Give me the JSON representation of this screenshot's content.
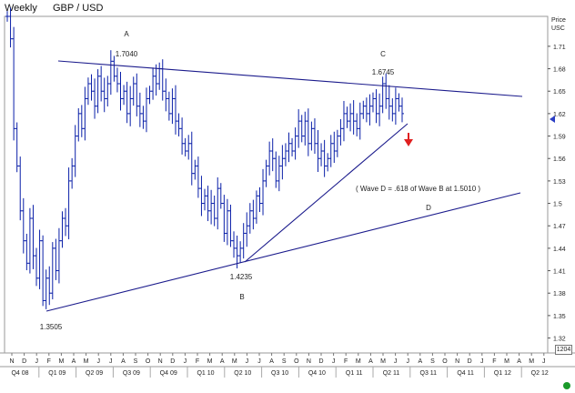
{
  "header": {
    "period": "Weekly",
    "symbol": "GBP  /  USD"
  },
  "price_axis": {
    "unit_line1": "Price",
    "unit_line2": "USC"
  },
  "zoom_label": "1204",
  "chart_data": {
    "type": "ohlc",
    "colors": {
      "bars": "#0a1fa8",
      "lines": "#1b1b8c",
      "arrow": "#e02020",
      "grid_text": "#222222"
    },
    "y_ticks": [
      "1.71",
      "1.68",
      "1.65",
      "1.62",
      "1.59",
      "1.56",
      "1.53",
      "1.5",
      "1.47",
      "1.44",
      "1.41",
      "1.38",
      "1.35",
      "1.32"
    ],
    "ylim": [
      1.3,
      1.75
    ],
    "month_labels": [
      "N",
      "D",
      "J",
      "F",
      "M",
      "A",
      "M",
      "J",
      "J",
      "A",
      "S",
      "O",
      "N",
      "D",
      "J",
      "F",
      "M",
      "A",
      "M",
      "J",
      "J",
      "A",
      "S",
      "O",
      "N",
      "D",
      "J",
      "F",
      "M",
      "A",
      "M",
      "J",
      "J",
      "A",
      "S",
      "O",
      "N",
      "D",
      "J",
      "F",
      "M",
      "A",
      "M",
      "J"
    ],
    "quarter_labels": [
      "Q4 08",
      "Q1 09",
      "Q2 09",
      "Q3 09",
      "Q4 09",
      "Q1 10",
      "Q2 10",
      "Q3 10",
      "Q4 10",
      "Q1 11",
      "Q2 11",
      "Q3 11",
      "Q4 11",
      "Q1 12",
      "Q2 12"
    ],
    "annotations": {
      "point_A": "A",
      "value_A": "1.7040",
      "point_B": "B",
      "value_B": "1.4235",
      "point_C": "C",
      "value_C": "1.6745",
      "point_D": "D",
      "value_D": "1.3505",
      "wave_note": "( Wave  D  =  .618  of  Wave  B  at  1.5010 )"
    },
    "close_series": [
      1.75,
      1.72,
      1.6,
      1.55,
      1.49,
      1.45,
      1.42,
      1.48,
      1.43,
      1.4,
      1.45,
      1.37,
      1.4,
      1.38,
      1.44,
      1.41,
      1.45,
      1.48,
      1.47,
      1.53,
      1.55,
      1.59,
      1.62,
      1.6,
      1.64,
      1.66,
      1.65,
      1.63,
      1.67,
      1.65,
      1.64,
      1.66,
      1.69,
      1.67,
      1.66,
      1.64,
      1.65,
      1.62,
      1.64,
      1.66,
      1.63,
      1.62,
      1.61,
      1.64,
      1.65,
      1.67,
      1.66,
      1.68,
      1.65,
      1.64,
      1.62,
      1.64,
      1.61,
      1.6,
      1.58,
      1.57,
      1.58,
      1.54,
      1.55,
      1.52,
      1.5,
      1.51,
      1.49,
      1.5,
      1.48,
      1.52,
      1.5,
      1.46,
      1.49,
      1.45,
      1.44,
      1.43,
      1.44,
      1.46,
      1.47,
      1.49,
      1.48,
      1.51,
      1.5,
      1.53,
      1.55,
      1.57,
      1.56,
      1.53,
      1.55,
      1.56,
      1.57,
      1.58,
      1.57,
      1.59,
      1.61,
      1.59,
      1.61,
      1.58,
      1.6,
      1.58,
      1.56,
      1.57,
      1.55,
      1.56,
      1.58,
      1.57,
      1.59,
      1.6,
      1.62,
      1.61,
      1.62,
      1.61,
      1.6,
      1.62,
      1.63,
      1.62,
      1.63,
      1.64,
      1.62,
      1.63,
      1.66,
      1.64,
      1.63,
      1.62,
      1.64,
      1.63,
      1.62
    ]
  }
}
